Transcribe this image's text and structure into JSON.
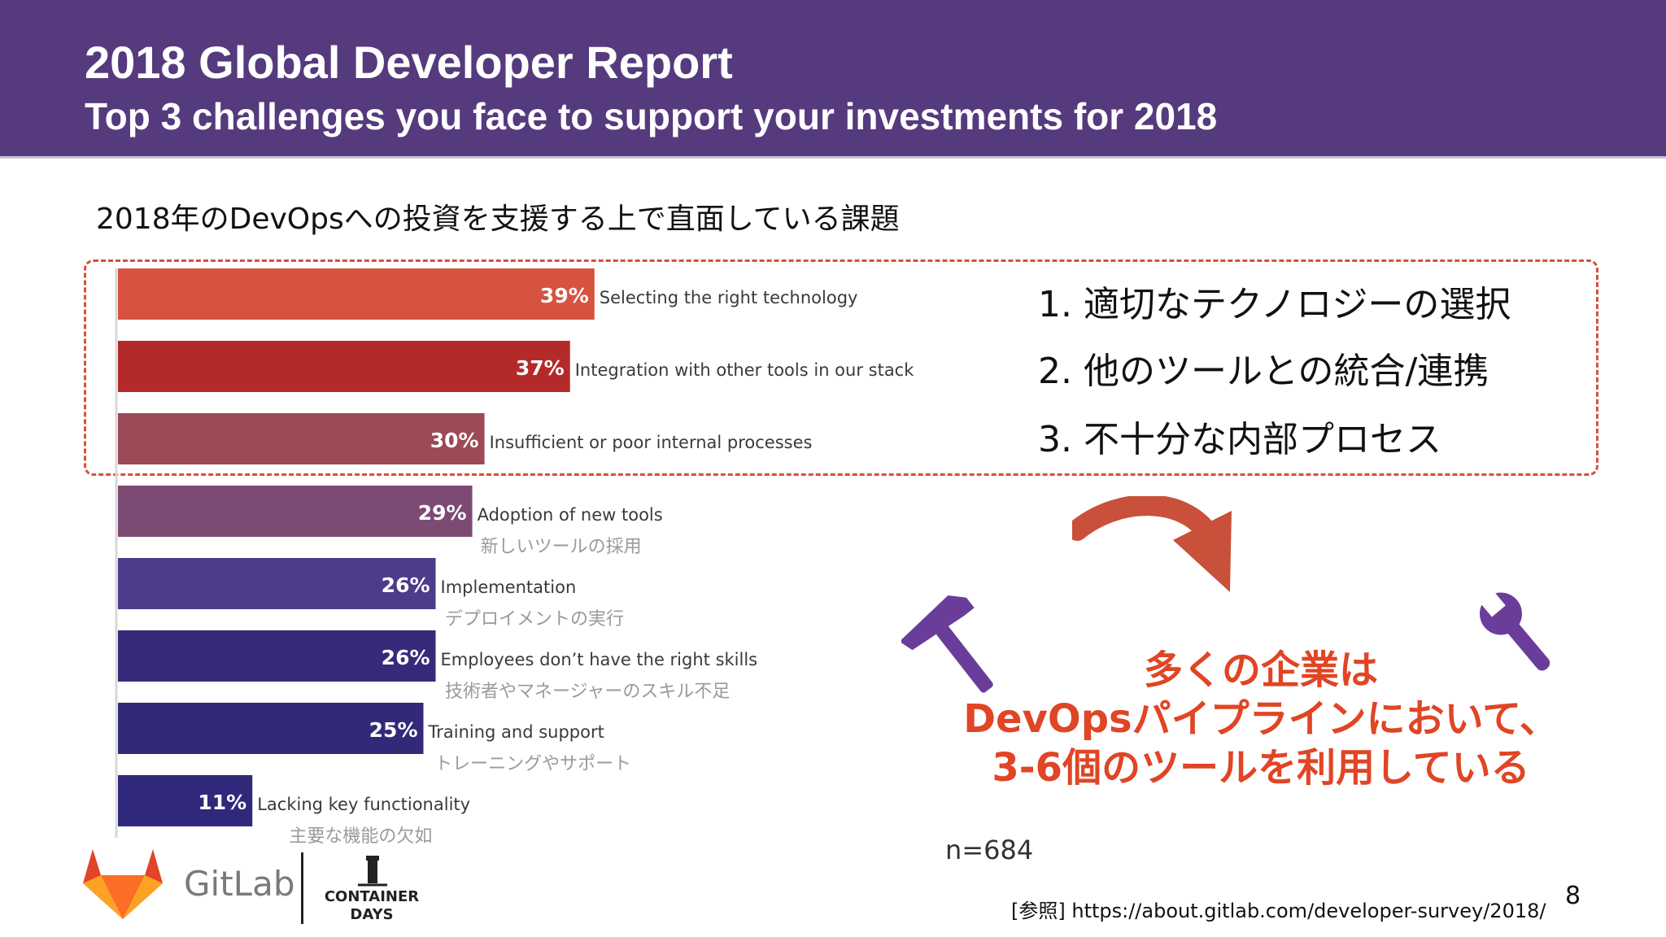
{
  "header": {
    "title": "2018 Global Developer Report",
    "subtitle": "Top 3 challenges you face to support your investments for 2018"
  },
  "jp_title": "2018年のDevOpsへの投資を支援する上で直面している課題",
  "chart_data": {
    "type": "bar",
    "orientation": "horizontal",
    "categories": [
      "Selecting the right technology",
      "Integration with other tools in our stack",
      "Insufficient or poor internal processes",
      "Adoption of new tools",
      "Implementation",
      "Employees don’t have the right skills",
      "Training and support",
      "Lacking key functionality"
    ],
    "categories_jp": [
      "",
      "",
      "",
      "新しいツールの採用",
      "デプロイメントの実行",
      "技術者やマネージャーのスキル不足",
      "トレーニングやサポート",
      "主要な機能の欠如"
    ],
    "values": [
      39,
      37,
      30,
      29,
      26,
      26,
      25,
      11
    ],
    "value_labels": [
      "39%",
      "37%",
      "30%",
      "29%",
      "26%",
      "26%",
      "25%",
      "11%"
    ],
    "colors": [
      "#d6533f",
      "#b42a2a",
      "#9c4a55",
      "#7d4a74",
      "#4c3c8a",
      "#372a7a",
      "#33297a",
      "#30287a"
    ],
    "xlim": [
      0,
      100
    ]
  },
  "top3": [
    "1. 適切なテクノロジーの選択",
    "2. 他のツールとの統合/連携",
    "3. 不十分な内部プロセス"
  ],
  "message": [
    "多くの企業は",
    "DevOpsパイプラインにおいて、",
    "3-6個のツールを利用している"
  ],
  "sample": "n=684",
  "reference": "[参照] https://about.gitlab.com/developer-survey/2018/",
  "page_number": "8",
  "logos": {
    "gitlab": "GitLab",
    "container_days_line1": "CONTAINER",
    "container_days_line2": "DAYS"
  },
  "icons": [
    "hammer-icon",
    "wrench-icon",
    "curved-arrow-icon",
    "gitlab-fox-icon",
    "lighthouse-icon"
  ],
  "accent_color": "#e04525",
  "header_color": "#553a7e"
}
